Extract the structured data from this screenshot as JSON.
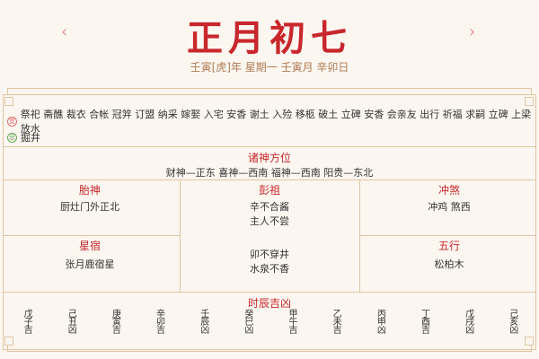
{
  "header": {
    "title": "正月初七",
    "subtitle": "壬寅[虎]年 星期一 壬寅月 辛卯日",
    "prev": "‹",
    "next": "›"
  },
  "yi": {
    "badge": "宜",
    "color": "#e07070",
    "text": "祭祀 斋醮 裁衣 合帐 冠笄 订盟 纳采 嫁娶 入宅 安香 谢土 入殓 移柩 破土 立碑 安香 会亲友 出行 祈福 求嗣 立碑 上梁 放水"
  },
  "ji": {
    "badge": "忌",
    "color": "#6aa85a",
    "text": "掘井"
  },
  "zhushen": {
    "title": "诸神方位",
    "text": "财神—正东 喜神—西南 福神—西南 阳贵—东北"
  },
  "taishen": {
    "title": "胎神",
    "text": "厨灶门外正北"
  },
  "pengzu": {
    "title": "彭祖",
    "lines": [
      "辛不合酱",
      "主人不尝",
      "卯不穿井",
      "水泉不香"
    ]
  },
  "chongsha": {
    "title": "冲煞",
    "text": "冲鸡 煞西"
  },
  "xingxiu": {
    "title": "星宿",
    "text": "张月鹿宿星"
  },
  "wuxing": {
    "title": "五行",
    "text": "松柏木"
  },
  "shichen": {
    "title": "时辰吉凶",
    "hours": [
      "戊子吉",
      "己丑凶",
      "庚寅吉",
      "辛卯吉",
      "壬辰凶",
      "癸巳凶",
      "甲午吉",
      "乙未吉",
      "丙申凶",
      "丁酉吉",
      "戊戌凶",
      "己亥凶"
    ]
  }
}
